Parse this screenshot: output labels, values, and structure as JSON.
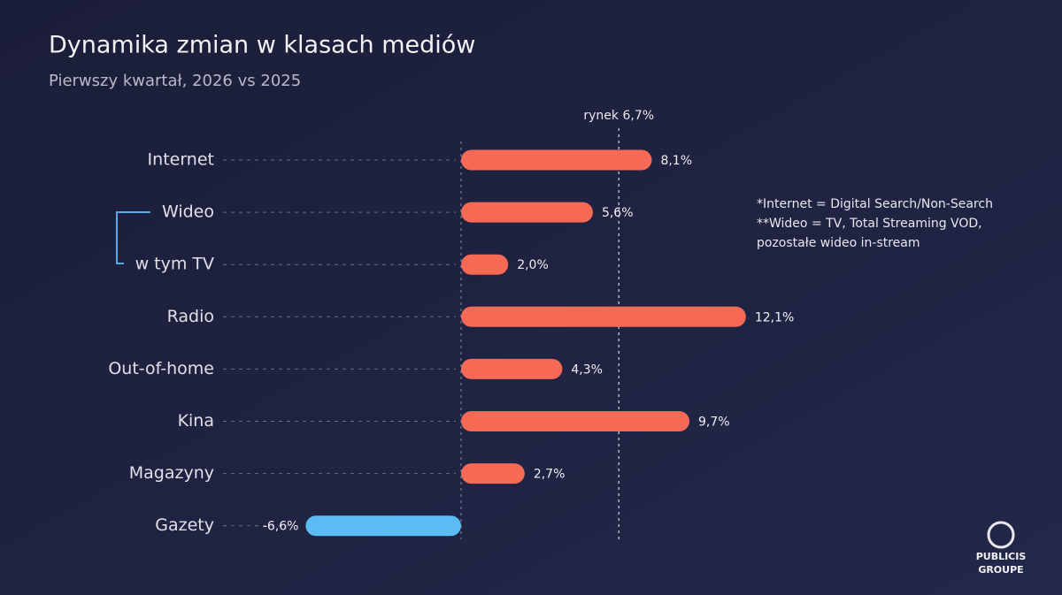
{
  "chart_data": {
    "type": "bar",
    "orientation": "horizontal",
    "title": "Dynamika zmian w klasach mediów",
    "subtitle": "Pierwszy kwartał, 2026 vs 2025",
    "categories": [
      "Internet",
      "Wideo",
      "w tym TV",
      "Radio",
      "Out-of-home",
      "Kina",
      "Magazyny",
      "Gazety"
    ],
    "values": [
      8.1,
      5.6,
      2.0,
      12.1,
      4.3,
      9.7,
      2.7,
      -6.6
    ],
    "value_labels": [
      "8,1%",
      "5,6%",
      "2,0%",
      "12,1%",
      "4,3%",
      "9,7%",
      "2,7%",
      "-6,6%"
    ],
    "color": "#f66a55",
    "negative_color": "#5bbcf5",
    "reference_line": {
      "value": 6.7,
      "label": "rynek 6,7%"
    },
    "notes": [
      "*Internet = Digital Search/Non-Search",
      "**Wideo = TV, Total Streaming VOD,",
      "pozostałe wideo in-stream"
    ],
    "logo": [
      "PUBLICIS",
      "GROUPE"
    ]
  }
}
